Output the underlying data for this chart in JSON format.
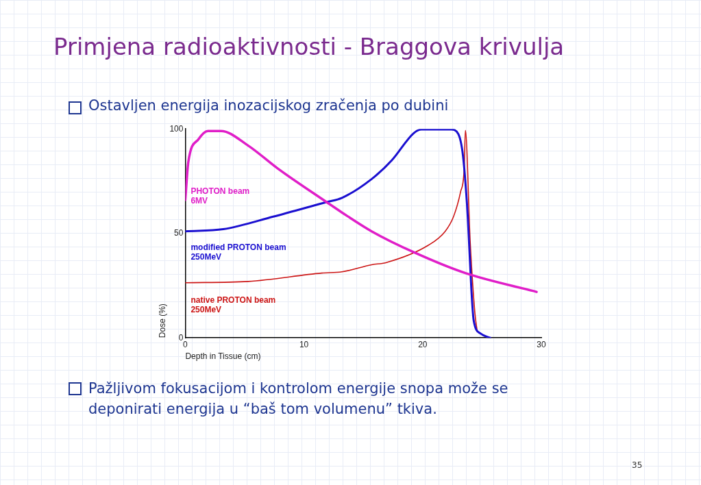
{
  "chart_data": {
    "type": "line",
    "title": "Primjena radioaktivnosti - Braggova krivulja",
    "subtitle": "Ostavljen energija inozacijskog zračenja po dubini",
    "xlabel": "Depth in Tissue (cm)",
    "ylabel": "Dose (%)",
    "annotations": [
      "Pažljivom fokusacijom i kontrolom energije snopa može se deponirati energija u “baš tom volumenu” tkiva.",
      "35"
    ],
    "series": [
      {
        "name": "PHOTON beam 6MV",
        "color": "#e01ec8",
        "x": [
          0,
          0.25,
          1.1,
          1.9,
          3,
          5.3,
          7.8,
          11.9,
          13.2,
          15.7,
          19.25,
          23.6,
          29.6
        ],
        "values": [
          66,
          84,
          95,
          99,
          99,
          92,
          81,
          65,
          60,
          51,
          41,
          31,
          22
        ]
      },
      {
        "name": "modified PROTON beam 250MeV",
        "color": "#1a0fd0",
        "x": [
          0,
          3.2,
          7.4,
          11.9,
          13.2,
          15.7,
          17.4,
          19.25,
          19.9,
          22.4,
          23,
          23.4,
          23.8,
          24.1,
          24.3,
          24.9,
          25.7
        ],
        "values": [
          51,
          52,
          58,
          65,
          67,
          76,
          85,
          98,
          99.7,
          99.7,
          97.6,
          87,
          58,
          23.6,
          8.3,
          2,
          0
        ]
      },
      {
        "name": "native PROTON beam 250MeV",
        "color": "#cc1414",
        "x": [
          0,
          5.3,
          11.5,
          13.2,
          15.7,
          16.9,
          20.5,
          21.9,
          22.6,
          23.2,
          23.5,
          23.6,
          24,
          24.4,
          24.6
        ],
        "values": [
          26.4,
          27,
          31,
          31.6,
          35,
          36,
          44.4,
          51,
          58,
          70,
          81,
          99.3,
          46.5,
          12,
          3
        ]
      }
    ],
    "xlim": [
      0,
      30
    ],
    "xticks": [
      0,
      10,
      20,
      30
    ],
    "ylim": [
      0,
      100
    ],
    "yticks": [
      0,
      50,
      100
    ],
    "grid": false,
    "legend": false,
    "marker": "none",
    "line_style": "solid"
  }
}
